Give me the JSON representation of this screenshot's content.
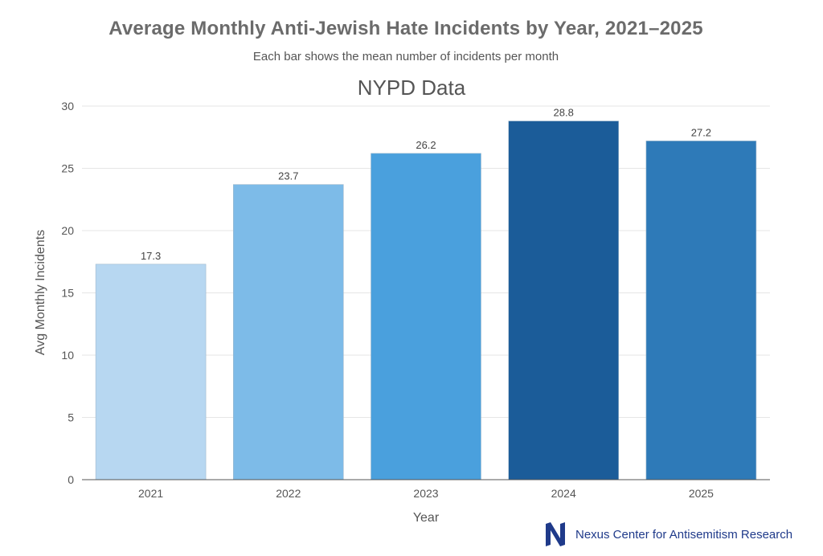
{
  "header": {
    "title": "Average Monthly Anti-Jewish Hate Incidents by Year, 2021–2025",
    "subtitle": "Each bar shows the mean number of incidents per month"
  },
  "footer": {
    "organization": "Nexus Center for Antisemitism Research",
    "logo_icon": "nexus-n-logo-icon",
    "logo_color": "#1f3a8a"
  },
  "chart_data": {
    "type": "bar",
    "title": "NYPD Data",
    "xlabel": "Year",
    "ylabel": "Avg Monthly Incidents",
    "categories": [
      "2021",
      "2022",
      "2023",
      "2024",
      "2025"
    ],
    "values": [
      17.3,
      23.7,
      26.2,
      28.8,
      27.2
    ],
    "data_labels": [
      "17.3",
      "23.7",
      "26.2",
      "28.8",
      "27.2"
    ],
    "colors": [
      "#b7d7f1",
      "#7dbbe8",
      "#4aa0dd",
      "#1b5c99",
      "#2e7ab8"
    ],
    "ylim": [
      0,
      30
    ],
    "yticks": [
      0,
      5,
      10,
      15,
      20,
      25,
      30
    ],
    "grid": true,
    "legend": "none"
  }
}
